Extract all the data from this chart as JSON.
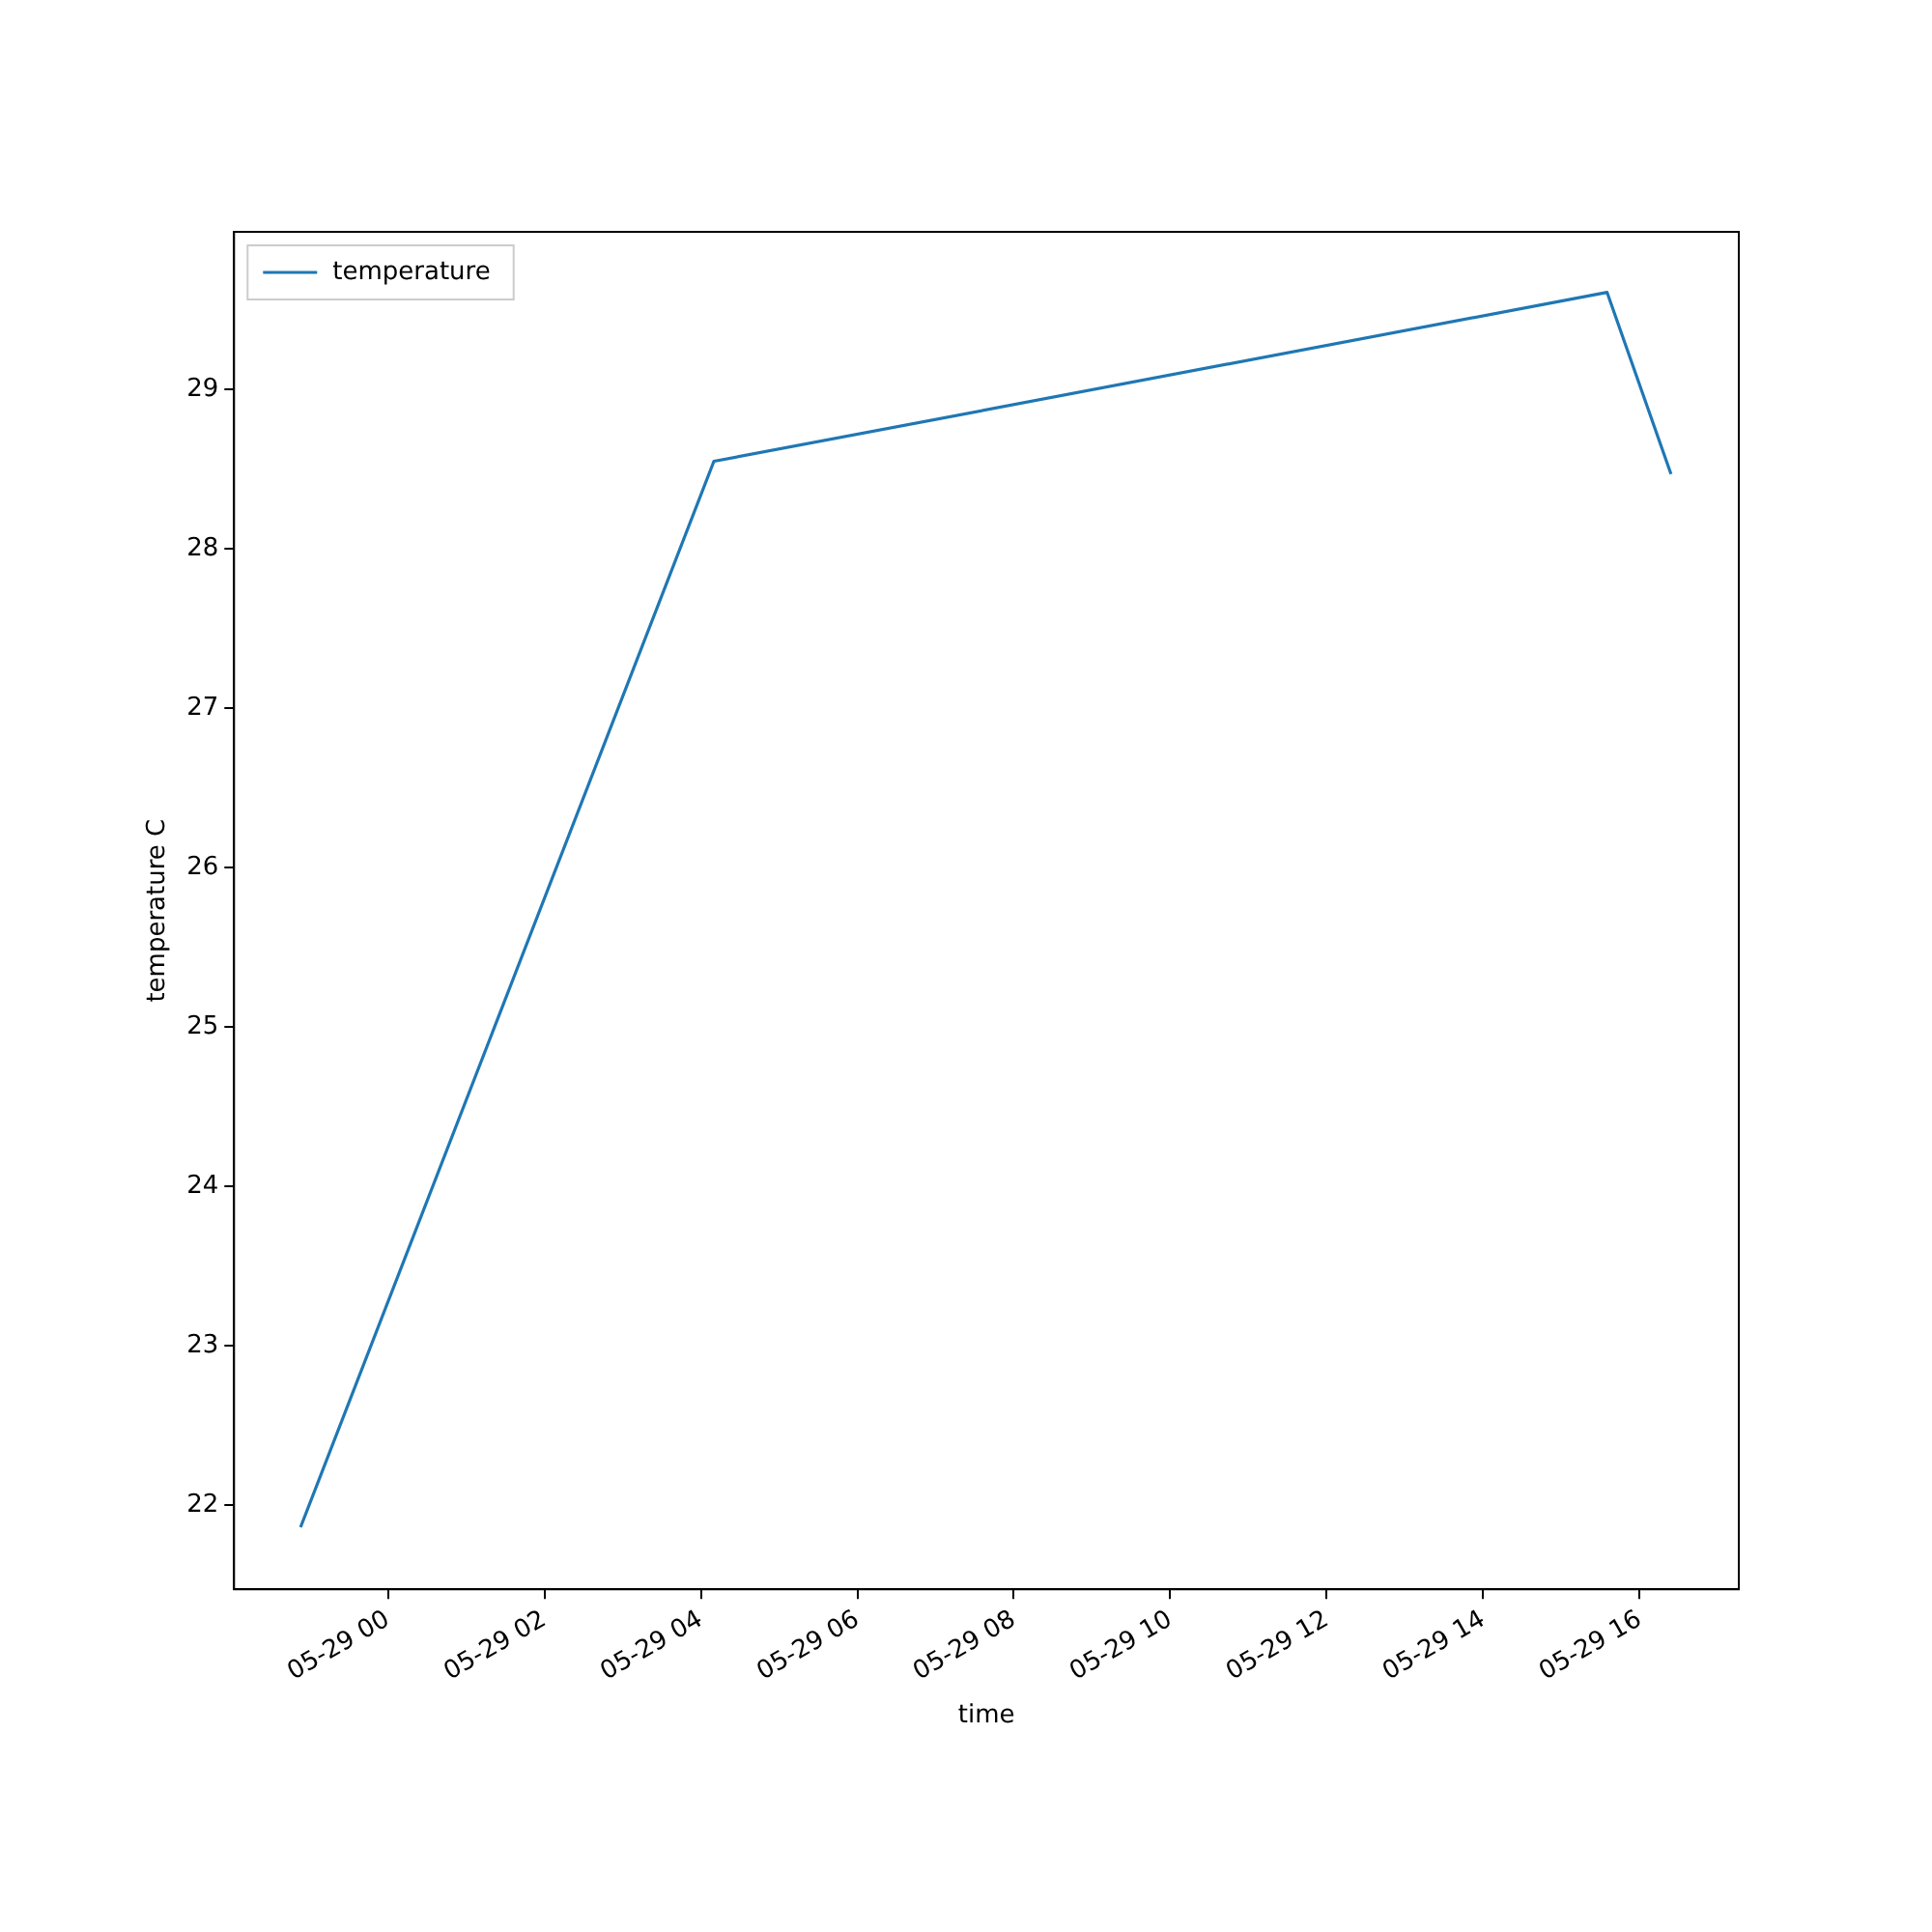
{
  "chart_data": {
    "type": "line",
    "xlabel": "time",
    "ylabel": "temperature C",
    "x": [
      "--05-28T22:53",
      "--05-29T04:10",
      "--05-29T15:35",
      "--05-29T16:24"
    ],
    "series": [
      {
        "name": "temperature",
        "color": "#1f77b4",
        "values": [
          21.86,
          28.55,
          29.61,
          28.47
        ]
      }
    ],
    "xlim": [
      "--05-28T22:02",
      "--05-29T17:16"
    ],
    "ylim": [
      21.47,
      29.99
    ],
    "xticks": [
      {
        "value": "--05-29T00:00",
        "label": "05-29 00"
      },
      {
        "value": "--05-29T02:00",
        "label": "05-29 02"
      },
      {
        "value": "--05-29T04:00",
        "label": "05-29 04"
      },
      {
        "value": "--05-29T06:00",
        "label": "05-29 06"
      },
      {
        "value": "--05-29T08:00",
        "label": "05-29 08"
      },
      {
        "value": "--05-29T10:00",
        "label": "05-29 10"
      },
      {
        "value": "--05-29T12:00",
        "label": "05-29 12"
      },
      {
        "value": "--05-29T14:00",
        "label": "05-29 14"
      },
      {
        "value": "--05-29T16:00",
        "label": "05-29 16"
      }
    ],
    "yticks": [
      22,
      23,
      24,
      25,
      26,
      27,
      28,
      29
    ],
    "legend": "top left",
    "marker": "none",
    "line_style": "solid",
    "grid": false
  }
}
